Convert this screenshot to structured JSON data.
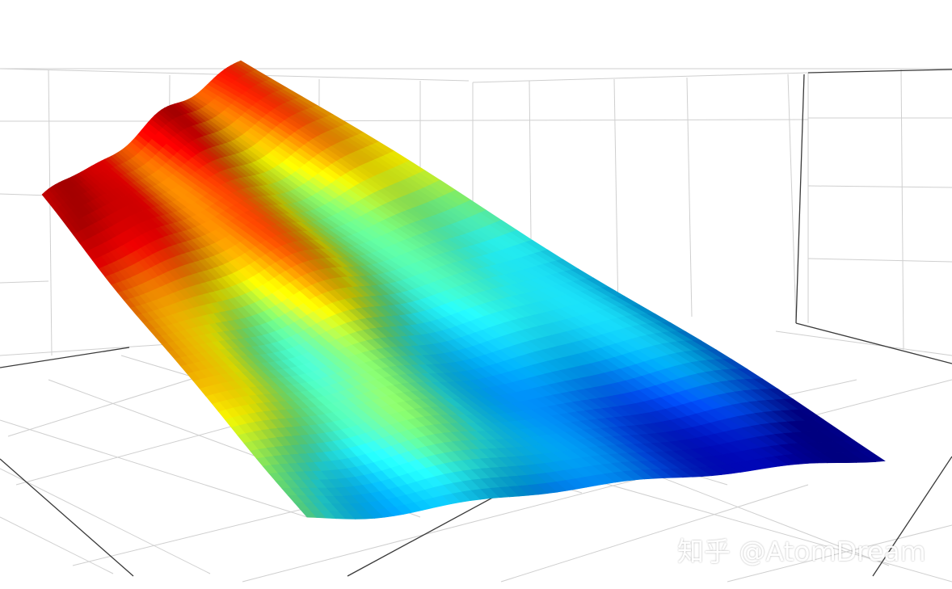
{
  "chart_data": {
    "type": "surface",
    "title": "",
    "xlabel": "",
    "ylabel": "",
    "zlabel": "",
    "colormap": "jet",
    "colormap_stops": [
      "#0000b0",
      "#0050ff",
      "#00b4ff",
      "#28ffff",
      "#7dff7d",
      "#ffff00",
      "#ff8c00",
      "#ff0000",
      "#c00000"
    ],
    "grid": true,
    "axes_visible": true,
    "tick_labels_visible": false,
    "legend": "none",
    "surface_shape": "terrain-like slope, highest at back-left, lowest at front-right, with ridges and valleys running left to right"
  },
  "watermark": {
    "text": "知乎 @AtomDream"
  }
}
